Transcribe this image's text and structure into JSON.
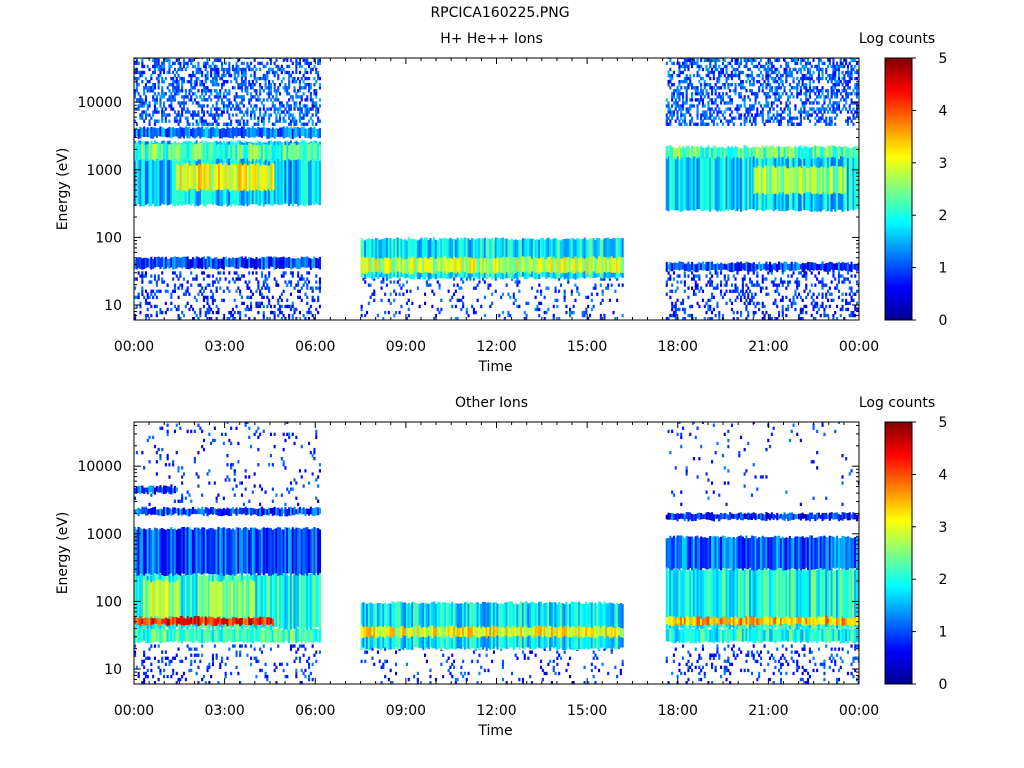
{
  "page": {
    "title": "RPCICA160225.PNG"
  },
  "colormap": [
    "#00008f",
    "#0000ff",
    "#0080ff",
    "#00ffff",
    "#80ff80",
    "#ffff00",
    "#ff8000",
    "#ff0000",
    "#800000"
  ],
  "chart_data": [
    {
      "type": "heatmap",
      "title": "H+ He++ Ions",
      "xlabel": "Time",
      "ylabel": "Energy (eV)",
      "y_scale": "log",
      "y_range_eV": [
        6,
        45000
      ],
      "x_range_hours": [
        0,
        24
      ],
      "x_tick_labels": [
        "00:00",
        "03:00",
        "06:00",
        "09:00",
        "12:00",
        "15:00",
        "18:00",
        "21:00",
        "00:00"
      ],
      "y_tick_values": [
        10,
        100,
        1000,
        10000
      ],
      "y_tick_labels": [
        "10",
        "100",
        "1000",
        "10000"
      ],
      "colorbar": {
        "label": "Log counts",
        "range": [
          0,
          5
        ],
        "tick_labels": [
          "0",
          "1",
          "2",
          "3",
          "4",
          "5"
        ]
      },
      "data_intervals_hours": [
        [
          0.0,
          6.15
        ],
        [
          7.5,
          16.15
        ],
        [
          17.6,
          24.0
        ]
      ],
      "bands": [
        {
          "t": [
            0.0,
            6.15
          ],
          "e": [
            35,
            50
          ],
          "level": 1.0
        },
        {
          "t": [
            0.0,
            6.15
          ],
          "e": [
            300,
            2600
          ],
          "level": 1.6
        },
        {
          "t": [
            0.0,
            6.15
          ],
          "e": [
            1400,
            2400
          ],
          "level": 2.3
        },
        {
          "t": [
            0.0,
            6.15
          ],
          "e": [
            3000,
            4200
          ],
          "level": 1.2
        },
        {
          "t": [
            1.4,
            4.6
          ],
          "e": [
            500,
            1200
          ],
          "level": 3.0
        },
        {
          "t": [
            7.5,
            16.15
          ],
          "e": [
            25,
            95
          ],
          "level": 1.8
        },
        {
          "t": [
            7.5,
            16.15
          ],
          "e": [
            30,
            50
          ],
          "level": 2.8
        },
        {
          "t": [
            17.6,
            24.0
          ],
          "e": [
            32,
            42
          ],
          "level": 1.0
        },
        {
          "t": [
            17.6,
            24.0
          ],
          "e": [
            250,
            1800
          ],
          "level": 1.7
        },
        {
          "t": [
            17.6,
            24.0
          ],
          "e": [
            1500,
            2200
          ],
          "level": 2.3
        },
        {
          "t": [
            20.5,
            23.5
          ],
          "e": [
            450,
            1100
          ],
          "level": 2.6
        }
      ],
      "noise": [
        {
          "t": [
            0.0,
            6.15
          ],
          "e": [
            4500,
            45000
          ],
          "density": 0.45,
          "level": 0.6
        },
        {
          "t": [
            17.6,
            24.0
          ],
          "e": [
            4500,
            45000
          ],
          "density": 0.45,
          "level": 0.6
        },
        {
          "t": [
            0.0,
            6.15
          ],
          "e": [
            6,
            30
          ],
          "density": 0.25,
          "level": 0.4
        },
        {
          "t": [
            17.6,
            24.0
          ],
          "e": [
            6,
            30
          ],
          "density": 0.25,
          "level": 0.4
        },
        {
          "t": [
            7.5,
            16.15
          ],
          "e": [
            6,
            25
          ],
          "density": 0.12,
          "level": 0.5
        }
      ]
    },
    {
      "type": "heatmap",
      "title": "Other Ions",
      "xlabel": "Time",
      "ylabel": "Energy (eV)",
      "y_scale": "log",
      "y_range_eV": [
        6,
        45000
      ],
      "x_range_hours": [
        0,
        24
      ],
      "x_tick_labels": [
        "00:00",
        "03:00",
        "06:00",
        "09:00",
        "12:00",
        "15:00",
        "18:00",
        "21:00",
        "00:00"
      ],
      "y_tick_values": [
        10,
        100,
        1000,
        10000
      ],
      "y_tick_labels": [
        "10",
        "100",
        "1000",
        "10000"
      ],
      "colorbar": {
        "label": "Log counts",
        "range": [
          0,
          5
        ],
        "tick_labels": [
          "0",
          "1",
          "2",
          "3",
          "4",
          "5"
        ]
      },
      "data_intervals_hours": [
        [
          0.0,
          6.15
        ],
        [
          7.5,
          16.15
        ],
        [
          17.6,
          24.0
        ]
      ],
      "bands": [
        {
          "t": [
            0.0,
            6.15
          ],
          "e": [
            25,
            40
          ],
          "level": 2.2
        },
        {
          "t": [
            0.0,
            6.15
          ],
          "e": [
            40,
            250
          ],
          "level": 2.0
        },
        {
          "t": [
            0.0,
            4.6
          ],
          "e": [
            45,
            58
          ],
          "level": 4.2
        },
        {
          "t": [
            0.3,
            1.5
          ],
          "e": [
            58,
            200
          ],
          "level": 2.8
        },
        {
          "t": [
            2.5,
            4.0
          ],
          "e": [
            58,
            200
          ],
          "level": 2.6
        },
        {
          "t": [
            0.0,
            6.15
          ],
          "e": [
            250,
            1200
          ],
          "level": 1.0
        },
        {
          "t": [
            0.0,
            6.15
          ],
          "e": [
            1900,
            2400
          ],
          "level": 1.0
        },
        {
          "t": [
            0.0,
            1.4
          ],
          "e": [
            4000,
            5000
          ],
          "level": 1.0
        },
        {
          "t": [
            7.5,
            16.15
          ],
          "e": [
            20,
            95
          ],
          "level": 1.8
        },
        {
          "t": [
            7.5,
            16.15
          ],
          "e": [
            30,
            42
          ],
          "level": 3.1
        },
        {
          "t": [
            17.6,
            24.0
          ],
          "e": [
            25,
            40
          ],
          "level": 2.0
        },
        {
          "t": [
            17.6,
            24.0
          ],
          "e": [
            40,
            300
          ],
          "level": 2.0
        },
        {
          "t": [
            17.6,
            24.0
          ],
          "e": [
            45,
            58
          ],
          "level": 3.5
        },
        {
          "t": [
            17.6,
            24.0
          ],
          "e": [
            300,
            900
          ],
          "level": 1.1
        },
        {
          "t": [
            17.6,
            24.0
          ],
          "e": [
            1600,
            2000
          ],
          "level": 0.8
        }
      ],
      "noise": [
        {
          "t": [
            0.0,
            6.15
          ],
          "e": [
            6,
            22
          ],
          "density": 0.15,
          "level": 0.4
        },
        {
          "t": [
            17.6,
            24.0
          ],
          "e": [
            6,
            22
          ],
          "density": 0.15,
          "level": 0.4
        },
        {
          "t": [
            0.0,
            6.15
          ],
          "e": [
            2600,
            45000
          ],
          "density": 0.06,
          "level": 0.4
        },
        {
          "t": [
            17.6,
            24.0
          ],
          "e": [
            2600,
            45000
          ],
          "density": 0.03,
          "level": 0.4
        },
        {
          "t": [
            7.5,
            16.15
          ],
          "e": [
            6,
            20
          ],
          "density": 0.08,
          "level": 0.4
        }
      ]
    }
  ]
}
